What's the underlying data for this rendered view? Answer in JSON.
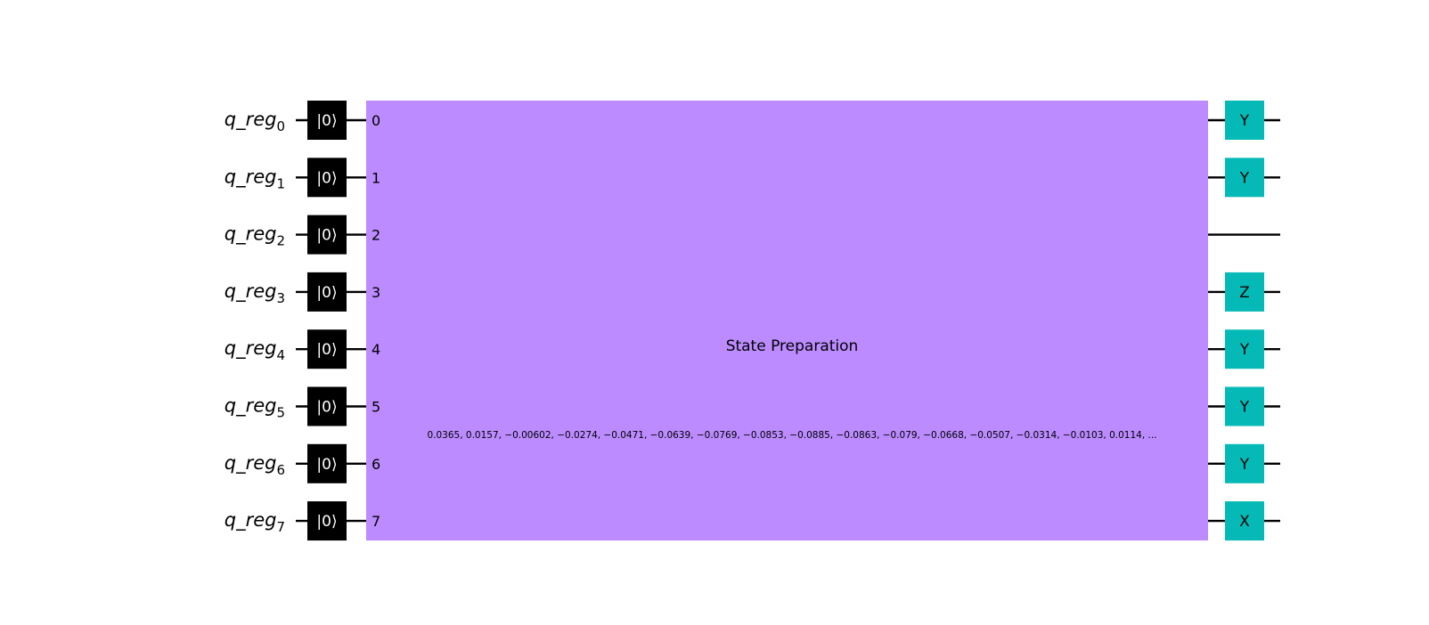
{
  "colors": {
    "wire": "#000000",
    "reset_fill": "#000000",
    "reset_text": "#ffffff",
    "state_prep_fill": "#bb8bff",
    "pauli_gate_fill": "#05bab6",
    "background": "#ffffff"
  },
  "qubits": [
    {
      "name": "q_reg",
      "index": "0"
    },
    {
      "name": "q_reg",
      "index": "1"
    },
    {
      "name": "q_reg",
      "index": "2"
    },
    {
      "name": "q_reg",
      "index": "3"
    },
    {
      "name": "q_reg",
      "index": "4"
    },
    {
      "name": "q_reg",
      "index": "5"
    },
    {
      "name": "q_reg",
      "index": "6"
    },
    {
      "name": "q_reg",
      "index": "7"
    }
  ],
  "reset_label": "|0⟩",
  "state_preparation": {
    "title": "State Preparation",
    "params": "0.0365, 0.0157, −0.00602, −0.0274, −0.0471, −0.0639, −0.0769, −0.0853, −0.0885, −0.0863, −0.079, −0.0668, −0.0507, −0.0314, −0.0103, 0.0114, ...",
    "pin_labels": [
      "0",
      "1",
      "2",
      "3",
      "4",
      "5",
      "6",
      "7"
    ]
  },
  "final_gates": [
    "Y",
    "Y",
    "",
    "Z",
    "Y",
    "Y",
    "Y",
    "X"
  ]
}
